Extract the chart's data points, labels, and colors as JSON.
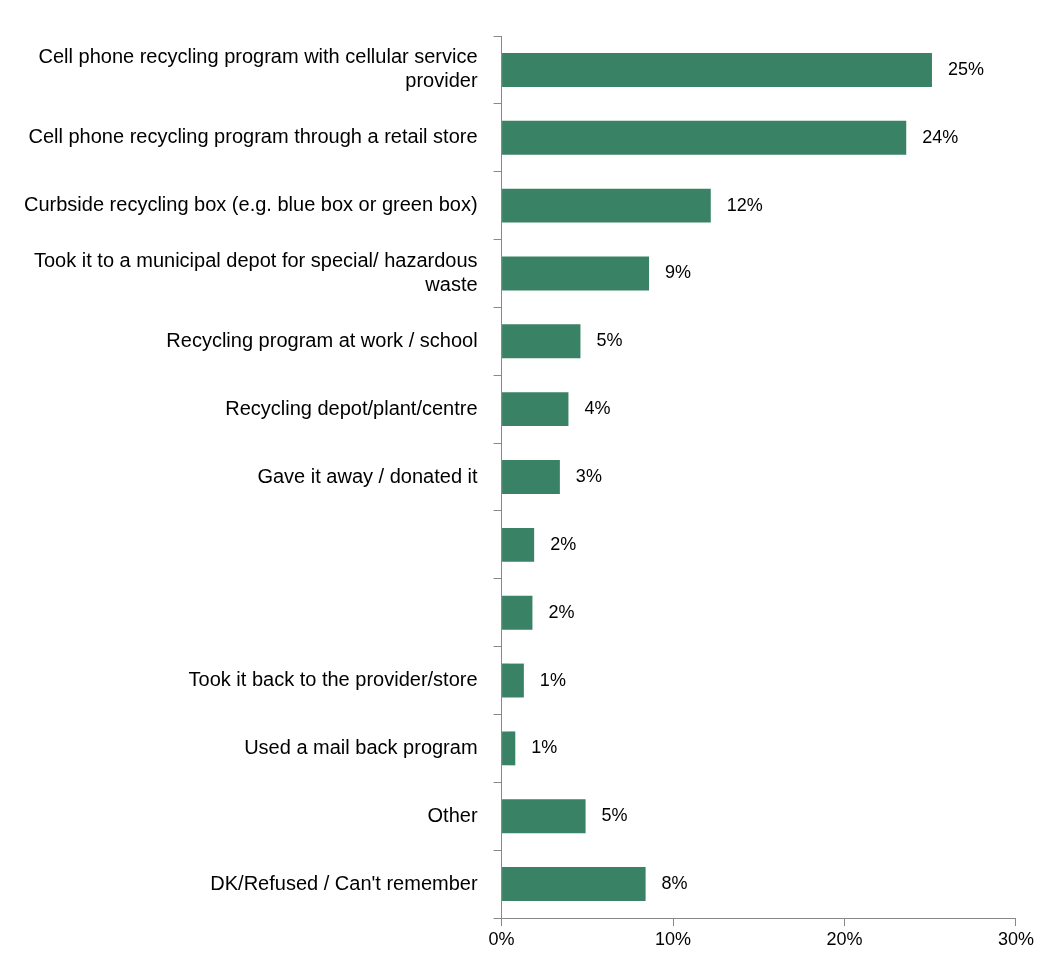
{
  "chart_data": {
    "type": "bar",
    "orientation": "horizontal",
    "categories": [
      "Cell phone recycling program with cellular service provider",
      "Cell phone recycling program through a retail store",
      "Curbside recycling box (e.g. blue box or green box)",
      "Took it to a municipal depot for special/ hazardous waste",
      "Recycling program at work / school",
      "Recycling depot/plant/centre",
      "Gave it away / donated it",
      null,
      null,
      "Took it back to the provider/store",
      "Used a mail back program",
      "Other",
      "DK/Refused / Can't remember"
    ],
    "values": [
      25.1,
      23.6,
      12.2,
      8.6,
      4.6,
      3.9,
      3.4,
      1.9,
      1.8,
      1.3,
      0.8,
      4.9,
      8.4
    ],
    "value_labels": [
      "25%",
      "24%",
      "12%",
      "9%",
      "5%",
      "4%",
      "3%",
      "2%",
      "2%",
      "1%",
      "1%",
      "5%",
      "8%"
    ],
    "color": "#3a8265",
    "xlim": [
      0,
      30
    ],
    "xticks": [
      {
        "value": 0,
        "label": "0%"
      },
      {
        "value": 10,
        "label": "10%"
      },
      {
        "value": 20,
        "label": "20%"
      },
      {
        "value": 30,
        "label": "30%"
      }
    ],
    "grid": false,
    "legend": false
  }
}
